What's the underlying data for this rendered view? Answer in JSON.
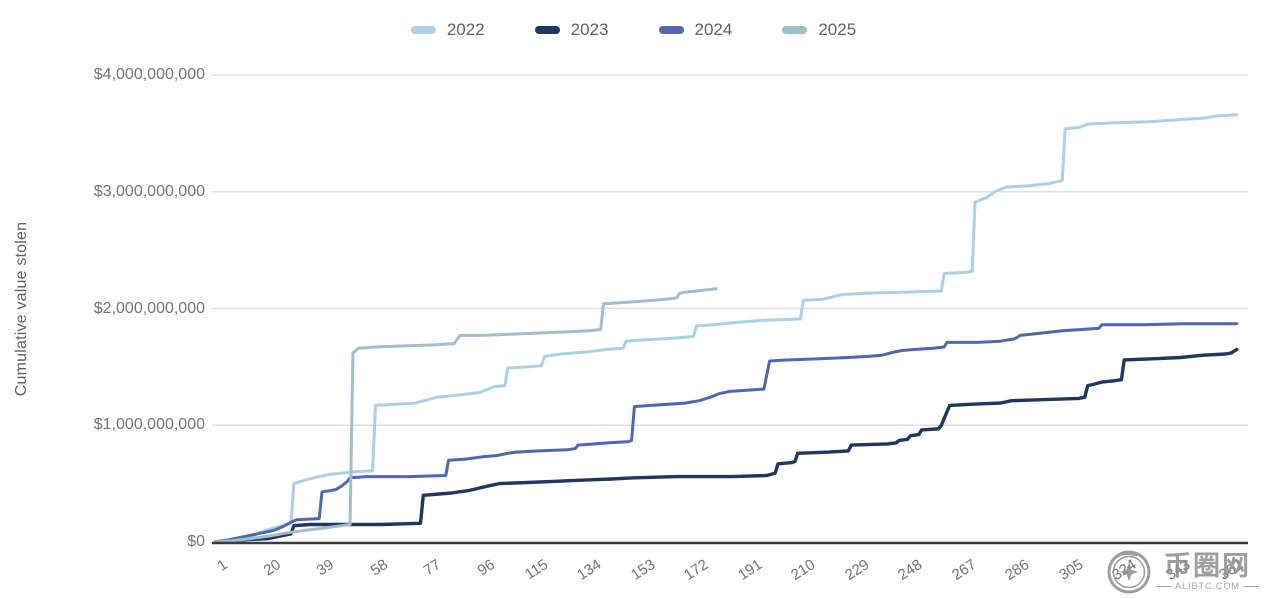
{
  "legend": {
    "items": [
      {
        "label": "2022",
        "color": "#A9D2E9"
      },
      {
        "label": "2023",
        "color": "#1E3765"
      },
      {
        "label": "2024",
        "color": "#4D69B3"
      },
      {
        "label": "2025",
        "color": "#9FBFD0"
      }
    ]
  },
  "watermark": {
    "site_name": "币圈网",
    "domain": "ALIBTC.COM"
  },
  "colors": {
    "gridline": "#E0E0E0",
    "baseline": "#3C3C3C",
    "tick_text": "#757575",
    "axis_title_text": "#616161"
  },
  "chart_data": {
    "type": "line",
    "title": "",
    "xlabel": "",
    "ylabel": "Cumulative value stolen",
    "x_axis": {
      "tick_days": [
        1,
        20,
        39,
        58,
        77,
        96,
        115,
        134,
        153,
        172,
        191,
        210,
        229,
        248,
        267,
        286,
        305,
        324,
        343,
        362
      ],
      "range_days": [
        1,
        365
      ],
      "tick_label_rotation_deg": -33
    },
    "y_axis": {
      "tick_values_billions": [
        0,
        1,
        2,
        3,
        4
      ],
      "tick_labels": [
        "$0",
        "$1,000,000,000",
        "$2,000,000,000",
        "$3,000,000,000",
        "$4,000,000,000"
      ],
      "ylim_billions": [
        0,
        4
      ],
      "grid": true
    },
    "legend_position": "top",
    "units": "USD billions, cumulative by day of year",
    "series": [
      {
        "name": "2022",
        "color": "#A9D2E9",
        "points_day_value_billion": [
          [
            1,
            0
          ],
          [
            8,
            0.02
          ],
          [
            14,
            0.05
          ],
          [
            19,
            0.1
          ],
          [
            25,
            0.14
          ],
          [
            28,
            0.16
          ],
          [
            29,
            0.5
          ],
          [
            33,
            0.53
          ],
          [
            38,
            0.56
          ],
          [
            42,
            0.58
          ],
          [
            50,
            0.6
          ],
          [
            57,
            0.61
          ],
          [
            58,
            1.17
          ],
          [
            65,
            1.18
          ],
          [
            72,
            1.19
          ],
          [
            80,
            1.24
          ],
          [
            88,
            1.26
          ],
          [
            95,
            1.28
          ],
          [
            100,
            1.33
          ],
          [
            104,
            1.34
          ],
          [
            105,
            1.49
          ],
          [
            112,
            1.5
          ],
          [
            117,
            1.51
          ],
          [
            118,
            1.59
          ],
          [
            124,
            1.61
          ],
          [
            134,
            1.63
          ],
          [
            140,
            1.65
          ],
          [
            146,
            1.66
          ],
          [
            147,
            1.72
          ],
          [
            152,
            1.73
          ],
          [
            160,
            1.74
          ],
          [
            166,
            1.75
          ],
          [
            171,
            1.76
          ],
          [
            172,
            1.85
          ],
          [
            178,
            1.86
          ],
          [
            186,
            1.88
          ],
          [
            196,
            1.9
          ],
          [
            209,
            1.91
          ],
          [
            210,
            2.07
          ],
          [
            217,
            2.08
          ],
          [
            224,
            2.12
          ],
          [
            232,
            2.13
          ],
          [
            245,
            2.14
          ],
          [
            259,
            2.15
          ],
          [
            260,
            2.3
          ],
          [
            268,
            2.31
          ],
          [
            270,
            2.32
          ],
          [
            271,
            2.91
          ],
          [
            275,
            2.95
          ],
          [
            278,
            3.0
          ],
          [
            282,
            3.04
          ],
          [
            290,
            3.05
          ],
          [
            297,
            3.07
          ],
          [
            301,
            3.09
          ],
          [
            302,
            3.1
          ],
          [
            303,
            3.54
          ],
          [
            308,
            3.55
          ],
          [
            311,
            3.58
          ],
          [
            320,
            3.59
          ],
          [
            333,
            3.6
          ],
          [
            345,
            3.62
          ],
          [
            352,
            3.63
          ],
          [
            357,
            3.65
          ],
          [
            364,
            3.66
          ]
        ]
      },
      {
        "name": "2023",
        "color": "#1E3765",
        "points_day_value_billion": [
          [
            1,
            0
          ],
          [
            6,
            0.01
          ],
          [
            12,
            0.02
          ],
          [
            20,
            0.03
          ],
          [
            26,
            0.06
          ],
          [
            28,
            0.07
          ],
          [
            29,
            0.14
          ],
          [
            35,
            0.15
          ],
          [
            60,
            0.15
          ],
          [
            74,
            0.16
          ],
          [
            75,
            0.4
          ],
          [
            85,
            0.42
          ],
          [
            91,
            0.44
          ],
          [
            98,
            0.48
          ],
          [
            102,
            0.5
          ],
          [
            112,
            0.51
          ],
          [
            122,
            0.52
          ],
          [
            132,
            0.53
          ],
          [
            142,
            0.54
          ],
          [
            150,
            0.55
          ],
          [
            165,
            0.56
          ],
          [
            185,
            0.56
          ],
          [
            197,
            0.57
          ],
          [
            200,
            0.59
          ],
          [
            201,
            0.67
          ],
          [
            206,
            0.68
          ],
          [
            207,
            0.69
          ],
          [
            208,
            0.76
          ],
          [
            219,
            0.77
          ],
          [
            226,
            0.78
          ],
          [
            227,
            0.83
          ],
          [
            240,
            0.84
          ],
          [
            243,
            0.85
          ],
          [
            244,
            0.87
          ],
          [
            247,
            0.88
          ],
          [
            248,
            0.91
          ],
          [
            251,
            0.92
          ],
          [
            252,
            0.96
          ],
          [
            258,
            0.97
          ],
          [
            259,
            1.0
          ],
          [
            262,
            1.17
          ],
          [
            270,
            1.18
          ],
          [
            280,
            1.19
          ],
          [
            284,
            1.21
          ],
          [
            296,
            1.22
          ],
          [
            308,
            1.23
          ],
          [
            310,
            1.24
          ],
          [
            311,
            1.34
          ],
          [
            313,
            1.35
          ],
          [
            316,
            1.37
          ],
          [
            320,
            1.38
          ],
          [
            323,
            1.39
          ],
          [
            324,
            1.56
          ],
          [
            335,
            1.57
          ],
          [
            344,
            1.58
          ],
          [
            352,
            1.6
          ],
          [
            360,
            1.61
          ],
          [
            362,
            1.62
          ],
          [
            364,
            1.65
          ]
        ]
      },
      {
        "name": "2024",
        "color": "#4D69B3",
        "points_day_value_billion": [
          [
            1,
            0
          ],
          [
            6,
            0.02
          ],
          [
            12,
            0.05
          ],
          [
            18,
            0.08
          ],
          [
            22,
            0.1
          ],
          [
            25,
            0.13
          ],
          [
            28,
            0.17
          ],
          [
            30,
            0.19
          ],
          [
            38,
            0.2
          ],
          [
            39,
            0.43
          ],
          [
            42,
            0.44
          ],
          [
            44,
            0.45
          ],
          [
            46,
            0.48
          ],
          [
            48,
            0.52
          ],
          [
            49,
            0.55
          ],
          [
            55,
            0.56
          ],
          [
            70,
            0.56
          ],
          [
            83,
            0.57
          ],
          [
            84,
            0.7
          ],
          [
            90,
            0.71
          ],
          [
            96,
            0.73
          ],
          [
            101,
            0.74
          ],
          [
            105,
            0.76
          ],
          [
            108,
            0.77
          ],
          [
            116,
            0.78
          ],
          [
            126,
            0.79
          ],
          [
            129,
            0.8
          ],
          [
            130,
            0.83
          ],
          [
            136,
            0.84
          ],
          [
            141,
            0.85
          ],
          [
            148,
            0.86
          ],
          [
            149,
            0.87
          ],
          [
            150,
            1.16
          ],
          [
            156,
            1.17
          ],
          [
            162,
            1.18
          ],
          [
            168,
            1.19
          ],
          [
            173,
            1.21
          ],
          [
            177,
            1.24
          ],
          [
            180,
            1.27
          ],
          [
            184,
            1.29
          ],
          [
            190,
            1.3
          ],
          [
            196,
            1.31
          ],
          [
            198,
            1.55
          ],
          [
            205,
            1.56
          ],
          [
            216,
            1.57
          ],
          [
            226,
            1.58
          ],
          [
            233,
            1.59
          ],
          [
            238,
            1.6
          ],
          [
            241,
            1.62
          ],
          [
            245,
            1.64
          ],
          [
            250,
            1.65
          ],
          [
            256,
            1.66
          ],
          [
            260,
            1.67
          ],
          [
            261,
            1.71
          ],
          [
            272,
            1.71
          ],
          [
            280,
            1.72
          ],
          [
            285,
            1.74
          ],
          [
            287,
            1.77
          ],
          [
            295,
            1.79
          ],
          [
            302,
            1.81
          ],
          [
            309,
            1.82
          ],
          [
            315,
            1.83
          ],
          [
            316,
            1.86
          ],
          [
            330,
            1.86
          ],
          [
            345,
            1.87
          ],
          [
            364,
            1.87
          ]
        ]
      },
      {
        "name": "2025",
        "color": "#9FBFD0",
        "points_day_value_billion": [
          [
            1,
            0
          ],
          [
            7,
            0.01
          ],
          [
            14,
            0.03
          ],
          [
            20,
            0.05
          ],
          [
            27,
            0.08
          ],
          [
            33,
            0.1
          ],
          [
            40,
            0.12
          ],
          [
            46,
            0.14
          ],
          [
            49,
            0.15
          ],
          [
            50,
            1.62
          ],
          [
            52,
            1.66
          ],
          [
            58,
            1.67
          ],
          [
            68,
            1.68
          ],
          [
            80,
            1.69
          ],
          [
            86,
            1.7
          ],
          [
            88,
            1.77
          ],
          [
            96,
            1.77
          ],
          [
            106,
            1.78
          ],
          [
            116,
            1.79
          ],
          [
            126,
            1.8
          ],
          [
            134,
            1.81
          ],
          [
            138,
            1.82
          ],
          [
            139,
            2.04
          ],
          [
            145,
            2.05
          ],
          [
            151,
            2.06
          ],
          [
            157,
            2.07
          ],
          [
            161,
            2.08
          ],
          [
            165,
            2.09
          ],
          [
            166,
            2.13
          ],
          [
            168,
            2.14
          ],
          [
            172,
            2.15
          ],
          [
            176,
            2.16
          ],
          [
            179,
            2.17
          ]
        ]
      }
    ]
  }
}
